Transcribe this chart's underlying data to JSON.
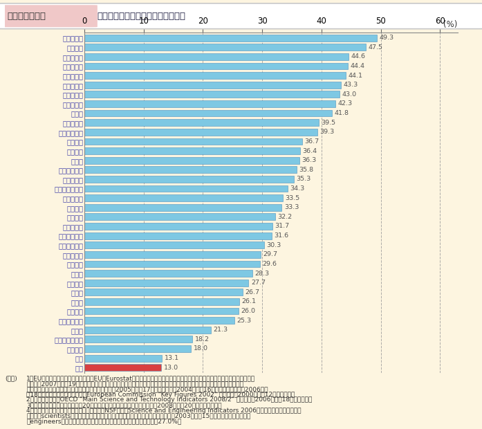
{
  "title_bold": "第１－７－６図",
  "title_text": "研究者に占める女性割合の国際比較",
  "categories": [
    "リトアニア",
    "ラトビア",
    "ブルガリア",
    "ポルトガル",
    "クロアチア",
    "ルーマニア",
    "エストニア",
    "スロバキア",
    "ロシア",
    "ポーランド",
    "アイスランド",
    "スペイン",
    "ギリシャ",
    "トルコ",
    "スウェーデン",
    "スロベニア",
    "アメリカ合衆国",
    "ハンガリー",
    "イタリア",
    "キプロス",
    "ノルウェー",
    "フィンランド",
    "アイルランド",
    "デンマーク",
    "ベルギー",
    "チェコ",
    "フランス",
    "スイス",
    "マルタ",
    "イギリス",
    "オーストリア",
    "ドイツ",
    "ルクセンブルク",
    "オランダ",
    "韓国",
    "日本"
  ],
  "values": [
    49.3,
    47.5,
    44.6,
    44.4,
    44.1,
    43.3,
    43.0,
    42.3,
    41.8,
    39.5,
    39.3,
    36.7,
    36.4,
    36.3,
    35.8,
    35.3,
    34.3,
    33.5,
    33.3,
    32.2,
    31.7,
    31.6,
    30.3,
    29.7,
    29.6,
    28.3,
    27.7,
    26.7,
    26.1,
    26.0,
    25.3,
    21.3,
    18.2,
    18.0,
    13.1,
    13.0
  ],
  "bar_color_blue": "#7EC8E3",
  "bar_color_red": "#D94040",
  "bar_edge_color": "#4A90C0",
  "bold_labels": [
    "アメリカ合衆国",
    "オーストリア",
    "ドイツ",
    "イギリス",
    "ルクセンブルク",
    "オランダ"
  ],
  "japan_idx": 35,
  "xticks": [
    0,
    10,
    20,
    30,
    40,
    50,
    60
  ],
  "xlim_max": 60,
  "background_color": "#FDF5E0",
  "title_left_bg": "#F0C8C8",
  "title_right_bg": "#FFFFFF",
  "title_border": "#C8C8C8",
  "grid_color": "#999999",
  "label_color": "#4444AA",
  "value_color": "#555555",
  "notes": [
    [
      "(備考)",
      "1．EU諸国の値は，イギリス以外は，EU「Eurostat」より作成。推定値，暫定値を含む。エストニア，スロバキア，ロシア，"
    ],
    [
      "",
      "チェコは2007（平成19）年。ポルトガル，アイスランド，ギリシャ，スウェーデン，ノルウェー，アイルランド，デンマー"
    ],
    [
      "",
      "ク，ベルギー，ドイツ，ルクセンブルク，オランダは2005（平成17）年。スイスは2004（平成16）年。その他の国は2006（平"
    ],
    [
      "",
      "成18）年時点。イギリスの値は，European Commission \"Key Figures 2002\" に基づく（2000（平成12）年時点）。"
    ],
    [
      "",
      "2．韓国の数値は，OECD \"Main Science and Technology Indicators 2008/2\" に基づく（2006（平成18）年時点）。"
    ],
    [
      "",
      "3．日本の数値は，総務省「平成20年科学技術研究調査報告書」に基づく（2008（平成20）年３月時点）。"
    ],
    [
      "",
      "4．アメリカ合衆国の数値は，国立科学財団（NSF）の「Science and Engineering Indicators 2006」に基づく雇用されている"
    ],
    [
      "",
      "科学者（scientists）における女性割合（人文科学の一部及び社会科学を含む）。2003（平成15）年時点の数値。技術者"
    ],
    [
      "",
      "（engineers）を含んだ場合，全体に占める女性科学者・技術者割合は27.0%。"
    ]
  ]
}
